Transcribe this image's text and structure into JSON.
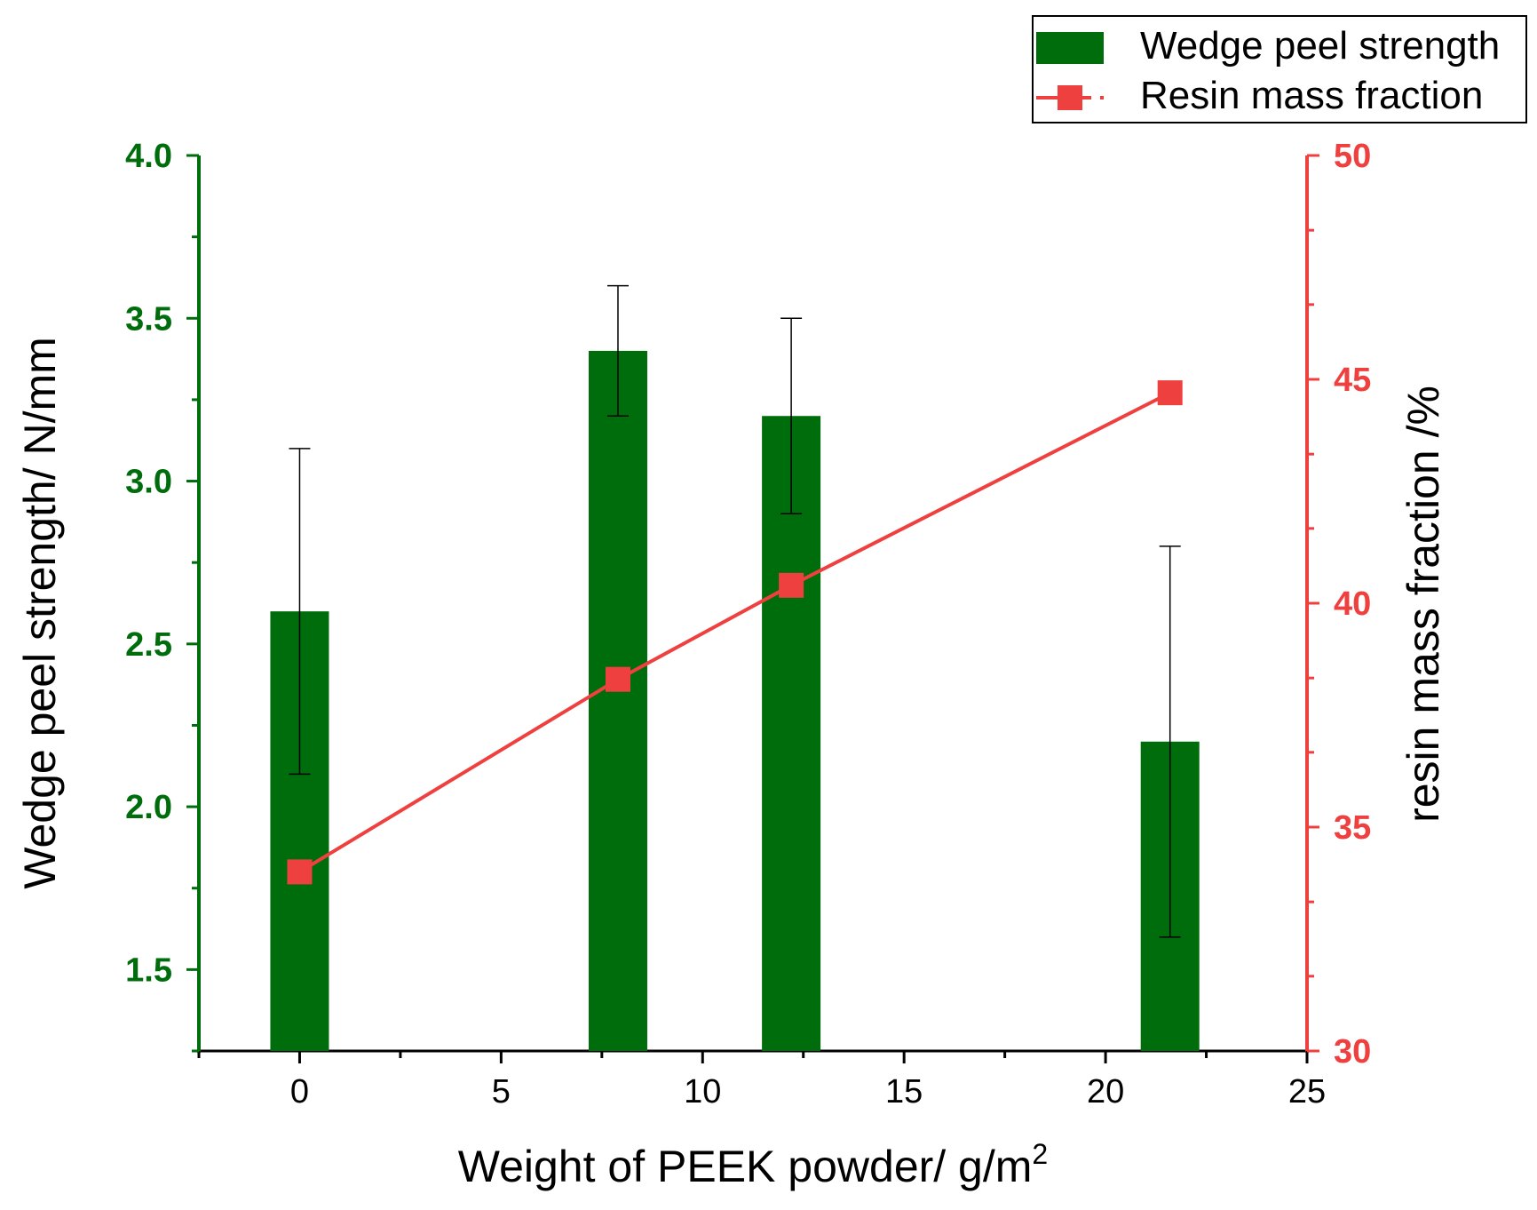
{
  "colors": {
    "bar": "#006d0c",
    "left_axis": "#006d0c",
    "line": "#ef4040",
    "right_axis": "#ef4040",
    "error_bar": "#000000",
    "text": "#000000"
  },
  "chart_data": {
    "type": "bar+line",
    "xlabel_main": "Weight of PEEK powder/ g/m",
    "xlabel_superscript": "2",
    "ylabel_left": "Wedge peel strength/ N/mm",
    "ylabel_right": "resin mass fraction /%",
    "xlim": [
      -2.5,
      25
    ],
    "ylim_left": [
      1.25,
      4.0
    ],
    "ylim_right": [
      30,
      50
    ],
    "x_ticks": [
      0,
      5,
      10,
      15,
      20,
      25
    ],
    "x_tick_labels": [
      "0",
      "5",
      "10",
      "15",
      "20",
      "25"
    ],
    "y_left_ticks": [
      1.5,
      2.0,
      2.5,
      3.0,
      3.5,
      4.0
    ],
    "y_left_tick_labels": [
      "1.5",
      "2.0",
      "2.5",
      "3.0",
      "3.5",
      "4.0"
    ],
    "y_right_ticks": [
      30,
      35,
      40,
      45,
      50
    ],
    "y_right_tick_labels": [
      "30",
      "35",
      "40",
      "45",
      "50"
    ],
    "series": [
      {
        "name": "Wedge peel strength",
        "kind": "bar",
        "axis": "left",
        "x": [
          0,
          7.9,
          12.2,
          21.6
        ],
        "values": [
          2.6,
          3.4,
          3.2,
          2.2
        ],
        "error_low": [
          2.1,
          3.2,
          2.9,
          1.6
        ],
        "error_high": [
          3.1,
          3.6,
          3.5,
          2.8
        ]
      },
      {
        "name": "Resin mass fraction",
        "kind": "line",
        "axis": "right",
        "x": [
          0,
          7.9,
          12.2,
          21.6
        ],
        "values": [
          34.0,
          38.3,
          40.4,
          44.7
        ]
      }
    ],
    "legend_position": "top-right"
  }
}
